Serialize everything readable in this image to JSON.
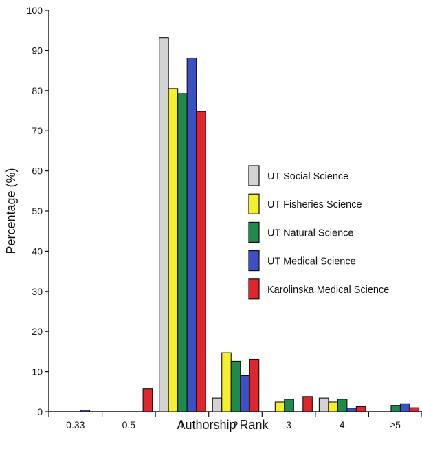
{
  "chart_data": {
    "type": "bar",
    "title": "",
    "xlabel": "Authorship Rank",
    "ylabel": "Percentage (%)",
    "ylim": [
      0,
      100
    ],
    "yticks": [
      0,
      10,
      20,
      30,
      40,
      50,
      60,
      70,
      80,
      90,
      100
    ],
    "categories": [
      "0.33",
      "0.5",
      "1",
      "2",
      "3",
      "4",
      "≥5"
    ],
    "series": [
      {
        "name": "UT Social Science",
        "color": "#d3d3d3",
        "values": [
          0,
          0,
          93.2,
          3.4,
          0,
          3.4,
          0
        ]
      },
      {
        "name": "UT Fisheries Science",
        "color": "#f5f02e",
        "values": [
          0,
          0,
          80.5,
          14.7,
          2.4,
          2.4,
          0
        ]
      },
      {
        "name": "UT Natural Science",
        "color": "#1e8a4b",
        "values": [
          0,
          0,
          79.3,
          12.6,
          3.1,
          3.1,
          1.6
        ]
      },
      {
        "name": "UT Medical Science",
        "color": "#3c4fc4",
        "values": [
          0.4,
          0,
          88.1,
          9.0,
          0,
          0.9,
          2.0
        ]
      },
      {
        "name": "Karolinska Medical Science",
        "color": "#e2252b",
        "values": [
          0,
          5.7,
          74.8,
          13.1,
          3.8,
          1.3,
          1.0
        ]
      }
    ],
    "legend_position": "right",
    "grid": false
  }
}
